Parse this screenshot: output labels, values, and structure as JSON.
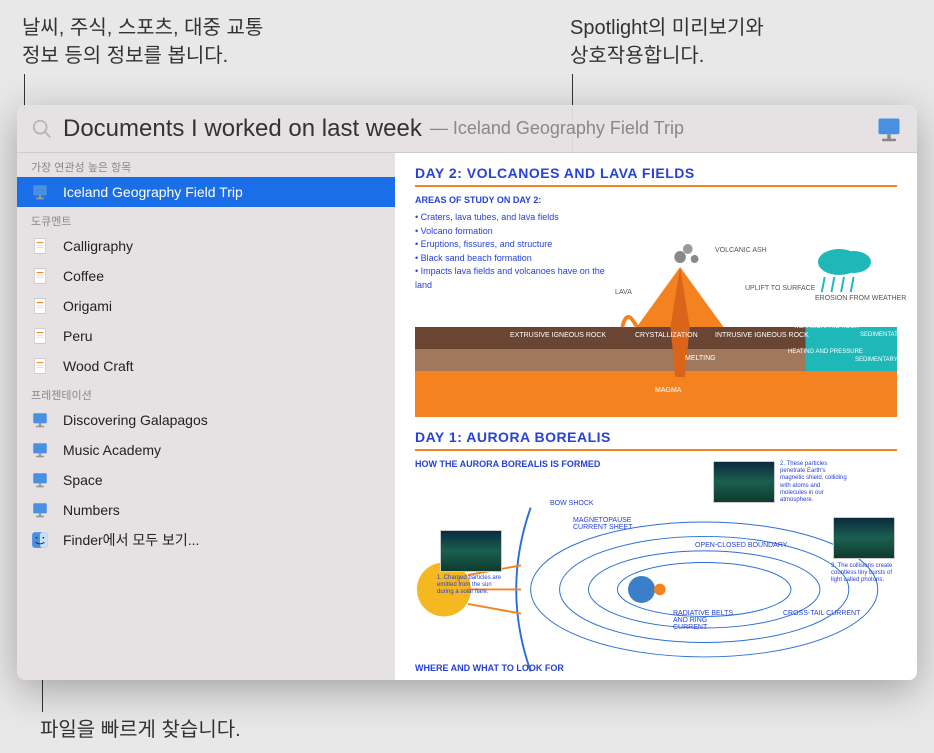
{
  "callouts": {
    "topLeft": "날씨, 주식, 스포츠, 대중 교통\n정보 등의 정보를 봅니다.",
    "topRight": "Spotlight의 미리보기와\n상호작용합니다.",
    "bottom": "파일을 빠르게 찾습니다."
  },
  "search": {
    "query": "Documents I worked on last week",
    "suffix": "— Iceland Geography Field Trip"
  },
  "sections": [
    {
      "header": "가장 연관성 높은 항목",
      "items": [
        {
          "label": "Iceland Geography Field Trip",
          "icon": "keynote",
          "selected": true
        }
      ]
    },
    {
      "header": "도큐멘트",
      "items": [
        {
          "label": "Calligraphy",
          "icon": "pages"
        },
        {
          "label": "Coffee",
          "icon": "pages"
        },
        {
          "label": "Origami",
          "icon": "pages"
        },
        {
          "label": "Peru",
          "icon": "pages"
        },
        {
          "label": "Wood Craft",
          "icon": "pages"
        }
      ]
    },
    {
      "header": "프레젠테이션",
      "items": [
        {
          "label": "Discovering Galapagos",
          "icon": "keynote"
        },
        {
          "label": "Music Academy",
          "icon": "keynote"
        },
        {
          "label": "Space",
          "icon": "keynote"
        },
        {
          "label": "Numbers",
          "icon": "keynote"
        },
        {
          "label": "Finder에서 모두 보기...",
          "icon": "finder"
        }
      ]
    }
  ],
  "preview": {
    "day2": {
      "title": "DAY 2: VOLCANOES AND LAVA FIELDS",
      "subtitle": "AREAS OF STUDY ON DAY 2:",
      "bullets": [
        "Craters, lava tubes, and lava fields",
        "Volcano formation",
        "Eruptions, fissures, and structure",
        "Black sand beach formation",
        "Impacts lava fields and volcanoes have on the land"
      ],
      "labels": {
        "volcanicAsh": "VOLCANIC ASH",
        "lava": "LAVA",
        "uplift": "UPLIFT TO SURFACE",
        "erosion": "EROSION FROM WEATHER",
        "extrusive": "EXTRUSIVE IGNEOUS ROCK",
        "crystallization": "CRYSTALLIZATION",
        "intrusive": "INTRUSIVE IGNEOUS ROCK",
        "metamorphic": "METAMORPHIC ROCK",
        "sedimentation": "SEDIMENTATION",
        "melting": "MELTING",
        "heating": "HEATING AND PRESSURE",
        "sedimentary": "SEDIMENTARY ROCK",
        "magma": "MAGMA"
      },
      "colors": {
        "orange": "#f58220",
        "darkBrown": "#6b4534",
        "lightBrown": "#a2785c",
        "teal": "#1fb8b8",
        "cloud": "#1fb8b8",
        "magma": "#f58220"
      }
    },
    "day1": {
      "title": "DAY 1: AURORA BOREALIS",
      "subtitle": "HOW THE AURORA BOREALIS IS FORMED",
      "footer": "WHERE AND WHAT TO LOOK FOR",
      "labels": {
        "bowShock": "BOW SHOCK",
        "magnetopause": "MAGNETOPAUSE CURRENT SHEET",
        "openClosed": "OPEN-CLOSED BOUNDARY",
        "radiative": "RADIATIVE BELTS AND RING CURRENT",
        "crossTail": "CROSS-TAIL CURRENT"
      },
      "captions": {
        "c1": "1. Charged particles are emitted from the sun during a solar flare.",
        "c2": "2. These particles penetrate Earth's magnetic shield, colliding with atoms and molecules in our atmosphere.",
        "c3": "3. The collisions create countless tiny bursts of light called photons."
      },
      "colors": {
        "lineBlue": "#2a6fd6",
        "sunYellow": "#f5b820",
        "earthBlue": "#3a7fc8",
        "orange": "#f58220"
      }
    }
  }
}
